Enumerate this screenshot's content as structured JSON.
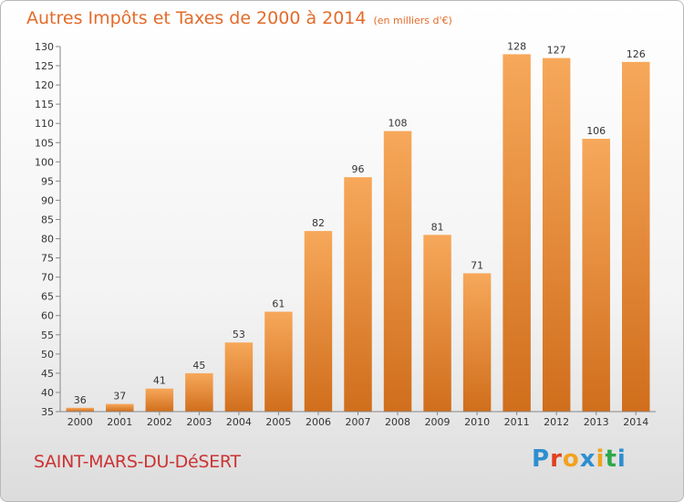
{
  "title": "Autres Impôts et Taxes de 2000 à 2014",
  "subtitle": "(en milliers d'€)",
  "commune": "SAINT-MARS-DU-DéSERT",
  "logo": {
    "text": "Proxiti",
    "colors": [
      "#2e8fd0",
      "#e0401e",
      "#f2a21d",
      "#2e8fd0",
      "#f2a21d",
      "#2ea84a",
      "#2e8fd0"
    ]
  },
  "colors": {
    "bar_light": "#f7a85a",
    "bar_dark": "#d06e1c",
    "title": "#e36b2a",
    "commune": "#cc3333"
  },
  "chart_data": {
    "type": "bar",
    "categories": [
      "2000",
      "2001",
      "2002",
      "2003",
      "2004",
      "2005",
      "2006",
      "2007",
      "2008",
      "2009",
      "2010",
      "2011",
      "2012",
      "2013",
      "2014"
    ],
    "values": [
      36,
      37,
      41,
      45,
      53,
      61,
      82,
      96,
      108,
      81,
      71,
      128,
      127,
      106,
      126
    ],
    "title": "Autres Impôts et Taxes de 2000 à 2014",
    "subtitle": "(en milliers d'€)",
    "xlabel": "",
    "ylabel": "",
    "ylim": [
      35,
      130
    ],
    "yticks": [
      35,
      40,
      45,
      50,
      55,
      60,
      65,
      70,
      75,
      80,
      85,
      90,
      95,
      100,
      105,
      110,
      115,
      120,
      125,
      130
    ],
    "grid": false,
    "legend": "none"
  }
}
